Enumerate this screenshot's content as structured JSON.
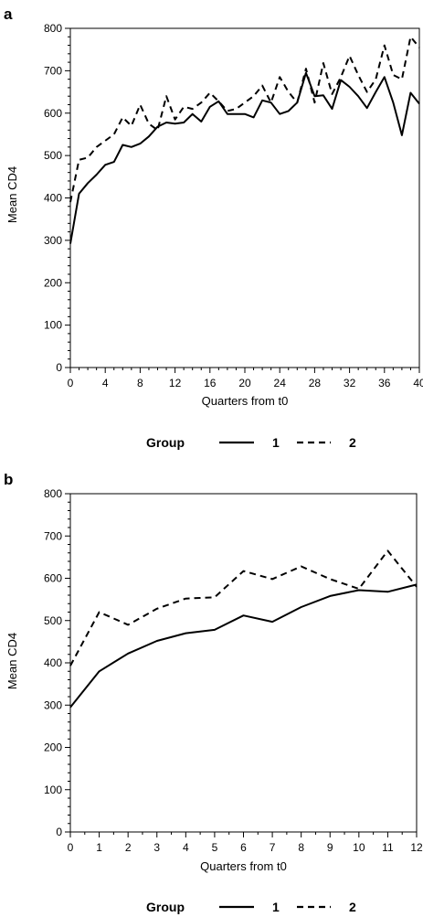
{
  "chart_data": [
    {
      "panel_label": "a",
      "type": "line",
      "xlabel": "Quarters from t0",
      "ylabel": "Mean CD4",
      "xlim": [
        0,
        40
      ],
      "ylim": [
        0,
        800
      ],
      "xticks": [
        0,
        4,
        8,
        12,
        16,
        20,
        24,
        28,
        32,
        36,
        40
      ],
      "yticks": [
        0,
        100,
        200,
        300,
        400,
        500,
        600,
        700,
        800
      ],
      "legend": {
        "title": "Group",
        "placement": "bottom-center"
      },
      "series": [
        {
          "name": "1",
          "style": "solid",
          "x": [
            0,
            1,
            2,
            3,
            4,
            5,
            6,
            7,
            8,
            9,
            10,
            11,
            12,
            13,
            14,
            15,
            16,
            17,
            18,
            19,
            20,
            21,
            22,
            23,
            24,
            25,
            26,
            27,
            28,
            29,
            30,
            31,
            32,
            33,
            34,
            35,
            36,
            37,
            38,
            39,
            40
          ],
          "y": [
            292,
            410,
            435,
            455,
            478,
            485,
            525,
            520,
            528,
            545,
            568,
            578,
            575,
            578,
            598,
            580,
            615,
            628,
            598,
            598,
            598,
            590,
            630,
            625,
            598,
            605,
            625,
            695,
            640,
            642,
            610,
            678,
            662,
            640,
            612,
            650,
            685,
            625,
            548,
            648,
            622
          ]
        },
        {
          "name": "2",
          "style": "dashed",
          "x": [
            0,
            1,
            2,
            3,
            4,
            5,
            6,
            7,
            8,
            9,
            10,
            11,
            12,
            13,
            14,
            15,
            16,
            17,
            18,
            19,
            20,
            21,
            22,
            23,
            24,
            25,
            26,
            27,
            28,
            29,
            30,
            31,
            32,
            33,
            34,
            35,
            36,
            37,
            38,
            39,
            40
          ],
          "y": [
            390,
            490,
            495,
            520,
            535,
            550,
            590,
            570,
            620,
            575,
            560,
            640,
            585,
            615,
            610,
            625,
            648,
            628,
            605,
            610,
            625,
            640,
            665,
            625,
            685,
            650,
            625,
            705,
            625,
            718,
            645,
            685,
            735,
            690,
            650,
            680,
            760,
            690,
            680,
            780,
            755
          ]
        }
      ]
    },
    {
      "panel_label": "b",
      "type": "line",
      "xlabel": "Quarters from t0",
      "ylabel": "Mean CD4",
      "xlim": [
        0,
        12
      ],
      "ylim": [
        0,
        800
      ],
      "xticks": [
        0,
        1,
        2,
        3,
        4,
        5,
        6,
        7,
        8,
        9,
        10,
        11,
        12
      ],
      "yticks": [
        0,
        100,
        200,
        300,
        400,
        500,
        600,
        700,
        800
      ],
      "legend": {
        "title": "Group",
        "placement": "bottom-center"
      },
      "series": [
        {
          "name": "1",
          "style": "solid",
          "x": [
            0,
            1,
            2,
            3,
            4,
            5,
            6,
            7,
            8,
            9,
            10,
            11,
            12
          ],
          "y": [
            295,
            380,
            422,
            452,
            470,
            478,
            512,
            497,
            532,
            558,
            572,
            568,
            585
          ]
        },
        {
          "name": "2",
          "style": "dashed",
          "x": [
            0,
            1,
            2,
            3,
            4,
            5,
            6,
            7,
            8,
            9,
            10,
            11,
            12
          ],
          "y": [
            393,
            520,
            490,
            528,
            552,
            555,
            617,
            598,
            628,
            598,
            575,
            665,
            580
          ]
        }
      ]
    }
  ]
}
